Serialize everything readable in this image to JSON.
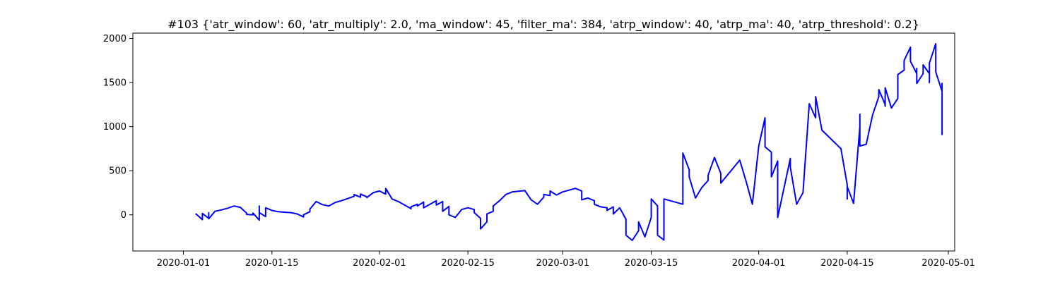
{
  "chart_data": {
    "type": "line",
    "title": "#103 {'atr_window': 60, 'atr_multiply': 2.0, 'ma_window': 45, 'filter_ma': 384, 'atrp_window': 40, 'atrp_ma': 40, 'atrp_threshold': 0.2}",
    "xlabel": "",
    "ylabel": "",
    "x_axis_type": "date",
    "xlim": [
      "2019-12-24",
      "2020-05-02"
    ],
    "ylim": [
      -410,
      2060
    ],
    "x_ticks": [
      "2020-01-01",
      "2020-01-15",
      "2020-02-01",
      "2020-02-15",
      "2020-03-01",
      "2020-03-15",
      "2020-04-01",
      "2020-04-15",
      "2020-05-01"
    ],
    "x_tick_labels": [
      "2020-01-01",
      "2020-01-15",
      "2020-02-01",
      "2020-02-15",
      "2020-03-01",
      "2020-03-15",
      "2020-04-01",
      "2020-04-15",
      "2020-05-01"
    ],
    "y_ticks": [
      0,
      500,
      1000,
      1500,
      2000
    ],
    "y_tick_labels": [
      "0",
      "500",
      "1000",
      "1500",
      "2000"
    ],
    "grid": false,
    "legend": "none",
    "series_color": "#0000ff",
    "series": [
      {
        "points": [
          [
            "2020-01-03",
            0
          ],
          [
            "2020-01-03",
            10
          ],
          [
            "2020-01-04",
            -55
          ],
          [
            "2020-01-04",
            15
          ],
          [
            "2020-01-05",
            -40
          ],
          [
            "2020-01-05",
            25
          ],
          [
            "2020-01-05",
            -45
          ],
          [
            "2020-01-06",
            40
          ],
          [
            "2020-01-07",
            55
          ],
          [
            "2020-01-08",
            75
          ],
          [
            "2020-01-09",
            100
          ],
          [
            "2020-01-10",
            85
          ],
          [
            "2020-01-11",
            20
          ],
          [
            "2020-01-11",
            5
          ],
          [
            "2020-01-12",
            0
          ],
          [
            "2020-01-12",
            20
          ],
          [
            "2020-01-13",
            -60
          ],
          [
            "2020-01-13",
            100
          ],
          [
            "2020-01-13",
            25
          ],
          [
            "2020-01-14",
            -20
          ],
          [
            "2020-01-14",
            80
          ],
          [
            "2020-01-15",
            50
          ],
          [
            "2020-01-16",
            35
          ],
          [
            "2020-01-17",
            30
          ],
          [
            "2020-01-18",
            25
          ],
          [
            "2020-01-19",
            10
          ],
          [
            "2020-01-20",
            -25
          ],
          [
            "2020-01-20",
            0
          ],
          [
            "2020-01-21",
            35
          ],
          [
            "2020-01-21",
            65
          ],
          [
            "2020-01-22",
            150
          ],
          [
            "2020-01-23",
            115
          ],
          [
            "2020-01-24",
            100
          ],
          [
            "2020-01-25",
            140
          ],
          [
            "2020-01-26",
            160
          ],
          [
            "2020-01-27",
            185
          ],
          [
            "2020-01-28",
            210
          ],
          [
            "2020-01-28",
            230
          ],
          [
            "2020-01-29",
            200
          ],
          [
            "2020-01-29",
            235
          ],
          [
            "2020-01-30",
            205
          ],
          [
            "2020-01-30",
            195
          ],
          [
            "2020-01-31",
            250
          ],
          [
            "2020-02-01",
            270
          ],
          [
            "2020-02-02",
            235
          ],
          [
            "2020-02-02",
            300
          ],
          [
            "2020-02-03",
            180
          ],
          [
            "2020-02-04",
            150
          ],
          [
            "2020-02-05",
            110
          ],
          [
            "2020-02-06",
            70
          ],
          [
            "2020-02-06",
            90
          ],
          [
            "2020-02-07",
            120
          ],
          [
            "2020-02-07",
            100
          ],
          [
            "2020-02-08",
            145
          ],
          [
            "2020-02-08",
            80
          ],
          [
            "2020-02-09",
            120
          ],
          [
            "2020-02-10",
            160
          ],
          [
            "2020-02-10",
            110
          ],
          [
            "2020-02-11",
            150
          ],
          [
            "2020-02-11",
            40
          ],
          [
            "2020-02-12",
            95
          ],
          [
            "2020-02-12",
            0
          ],
          [
            "2020-02-13",
            -30
          ],
          [
            "2020-02-14",
            60
          ],
          [
            "2020-02-15",
            80
          ],
          [
            "2020-02-16",
            60
          ],
          [
            "2020-02-16",
            25
          ],
          [
            "2020-02-17",
            -40
          ],
          [
            "2020-02-17",
            -80
          ],
          [
            "2020-02-17",
            -160
          ],
          [
            "2020-02-18",
            -80
          ],
          [
            "2020-02-18",
            10
          ],
          [
            "2020-02-19",
            40
          ],
          [
            "2020-02-19",
            100
          ],
          [
            "2020-02-20",
            160
          ],
          [
            "2020-02-21",
            230
          ],
          [
            "2020-02-22",
            260
          ],
          [
            "2020-02-24",
            275
          ],
          [
            "2020-02-25",
            170
          ],
          [
            "2020-02-26",
            120
          ],
          [
            "2020-02-27",
            200
          ],
          [
            "2020-02-27",
            230
          ],
          [
            "2020-02-28",
            220
          ],
          [
            "2020-02-28",
            270
          ],
          [
            "2020-02-29",
            225
          ],
          [
            "2020-03-01",
            260
          ],
          [
            "2020-03-02",
            280
          ],
          [
            "2020-03-03",
            300
          ],
          [
            "2020-03-04",
            270
          ],
          [
            "2020-03-04",
            170
          ],
          [
            "2020-03-05",
            190
          ],
          [
            "2020-03-06",
            160
          ],
          [
            "2020-03-06",
            120
          ],
          [
            "2020-03-07",
            90
          ],
          [
            "2020-03-08",
            80
          ],
          [
            "2020-03-08",
            50
          ],
          [
            "2020-03-09",
            90
          ],
          [
            "2020-03-09",
            10
          ],
          [
            "2020-03-10",
            80
          ],
          [
            "2020-03-11",
            -50
          ],
          [
            "2020-03-11",
            -230
          ],
          [
            "2020-03-12",
            -290
          ],
          [
            "2020-03-13",
            -180
          ],
          [
            "2020-03-13",
            -80
          ],
          [
            "2020-03-14",
            -250
          ],
          [
            "2020-03-15",
            -30
          ],
          [
            "2020-03-15",
            180
          ],
          [
            "2020-03-16",
            100
          ],
          [
            "2020-03-16",
            -230
          ],
          [
            "2020-03-17",
            -285
          ],
          [
            "2020-03-17",
            180
          ],
          [
            "2020-03-20",
            120
          ],
          [
            "2020-03-20",
            300
          ],
          [
            "2020-03-20",
            700
          ],
          [
            "2020-03-21",
            510
          ],
          [
            "2020-03-21",
            430
          ],
          [
            "2020-03-22",
            190
          ],
          [
            "2020-03-23",
            310
          ],
          [
            "2020-03-24",
            390
          ],
          [
            "2020-03-24",
            450
          ],
          [
            "2020-03-25",
            650
          ],
          [
            "2020-03-26",
            470
          ],
          [
            "2020-03-26",
            360
          ],
          [
            "2020-03-29",
            620
          ],
          [
            "2020-03-30",
            380
          ],
          [
            "2020-03-31",
            120
          ],
          [
            "2020-04-01",
            780
          ],
          [
            "2020-04-02",
            1100
          ],
          [
            "2020-04-02",
            770
          ],
          [
            "2020-04-03",
            710
          ],
          [
            "2020-04-03",
            430
          ],
          [
            "2020-04-04",
            610
          ],
          [
            "2020-04-04",
            -30
          ],
          [
            "2020-04-06",
            640
          ],
          [
            "2020-04-06",
            540
          ],
          [
            "2020-04-07",
            120
          ],
          [
            "2020-04-08",
            250
          ],
          [
            "2020-04-09",
            1260
          ],
          [
            "2020-04-10",
            1100
          ],
          [
            "2020-04-10",
            1340
          ],
          [
            "2020-04-11",
            960
          ],
          [
            "2020-04-14",
            750
          ],
          [
            "2020-04-15",
            340
          ],
          [
            "2020-04-15",
            180
          ],
          [
            "2020-04-15",
            320
          ],
          [
            "2020-04-16",
            130
          ],
          [
            "2020-04-17",
            1000
          ],
          [
            "2020-04-17",
            1140
          ],
          [
            "2020-04-17",
            780
          ],
          [
            "2020-04-18",
            800
          ],
          [
            "2020-04-19",
            1130
          ],
          [
            "2020-04-20",
            1340
          ],
          [
            "2020-04-20",
            1420
          ],
          [
            "2020-04-21",
            1250
          ],
          [
            "2020-04-21",
            1230
          ],
          [
            "2020-04-21",
            1440
          ],
          [
            "2020-04-22",
            1210
          ],
          [
            "2020-04-23",
            1320
          ],
          [
            "2020-04-23",
            1590
          ],
          [
            "2020-04-24",
            1640
          ],
          [
            "2020-04-24",
            1750
          ],
          [
            "2020-04-25",
            1900
          ],
          [
            "2020-04-25",
            1740
          ],
          [
            "2020-04-26",
            1600
          ],
          [
            "2020-04-26",
            1510
          ],
          [
            "2020-04-26",
            1660
          ],
          [
            "2020-04-26",
            1490
          ],
          [
            "2020-04-27",
            1600
          ],
          [
            "2020-04-27",
            1700
          ],
          [
            "2020-04-28",
            1600
          ],
          [
            "2020-04-28",
            1500
          ],
          [
            "2020-04-28",
            1720
          ],
          [
            "2020-04-29",
            1940
          ],
          [
            "2020-04-29",
            1830
          ],
          [
            "2020-04-29",
            1620
          ],
          [
            "2020-04-30",
            1400
          ],
          [
            "2020-04-30",
            1490
          ],
          [
            "2020-04-30",
            1250
          ],
          [
            "2020-04-30",
            910
          ],
          [
            "2020-04-30",
            1000
          ],
          [
            "2020-04-30",
            920
          ],
          [
            "2020-04-30",
            990
          ],
          [
            "2020-04-30",
            1220
          ],
          [
            "2020-04-30",
            1230
          ],
          [
            "2020-04-30",
            1360
          ],
          [
            "2020-04-30",
            1300
          ],
          [
            "2020-04-30",
            1430
          ],
          [
            "2020-04-30",
            1340
          ],
          [
            "2020-04-30",
            1350
          ],
          [
            "2020-04-30",
            1400
          ],
          [
            "2020-04-30",
            1310
          ],
          [
            "2020-04-30",
            1210
          ],
          [
            "2020-04-30",
            1120
          ],
          [
            "2020-04-30",
            1280
          ],
          [
            "2020-04-30",
            1180
          ],
          [
            "2020-04-30",
            1300
          ],
          [
            "2020-04-30",
            1170
          ]
        ]
      }
    ]
  }
}
